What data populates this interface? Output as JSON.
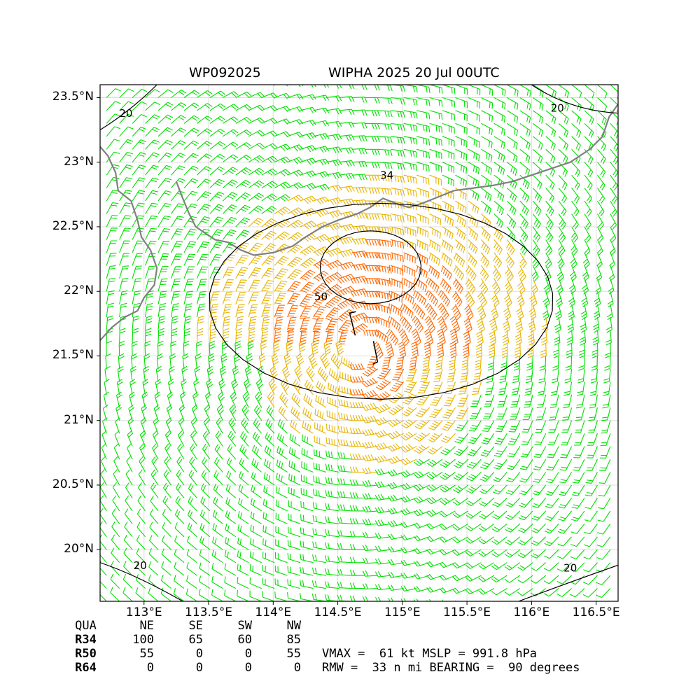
{
  "header": {
    "storm_id": "WP092025",
    "storm_title": "WIPHA 2025 20 Jul 00UTC"
  },
  "map": {
    "extent": {
      "lon": [
        112.66,
        116.67
      ],
      "lat": [
        19.6,
        23.6
      ]
    },
    "center": {
      "lon": 114.7,
      "lat": 21.55
    },
    "x_ticks": [
      {
        "lon": 113.0,
        "label": "113°E"
      },
      {
        "lon": 113.5,
        "label": "113.5°E"
      },
      {
        "lon": 114.0,
        "label": "114°E"
      },
      {
        "lon": 114.5,
        "label": "114.5°E"
      },
      {
        "lon": 115.0,
        "label": "115°E"
      },
      {
        "lon": 115.5,
        "label": "115.5°E"
      },
      {
        "lon": 116.0,
        "label": "116°E"
      },
      {
        "lon": 116.5,
        "label": "116.5°E"
      }
    ],
    "y_ticks": [
      {
        "lat": 23.5,
        "label": "23.5°N"
      },
      {
        "lat": 23.0,
        "label": "23°N"
      },
      {
        "lat": 22.5,
        "label": "22.5°N"
      },
      {
        "lat": 22.0,
        "label": "22°N"
      },
      {
        "lat": 21.5,
        "label": "21.5°N"
      },
      {
        "lat": 21.0,
        "label": "21°N"
      },
      {
        "lat": 20.5,
        "label": "20.5°N"
      },
      {
        "lat": 20.0,
        "label": "20°N"
      }
    ],
    "grid": true,
    "colors": {
      "barb_below_34": "#00e000",
      "barb_34_50": "#e8b400",
      "barb_50_64": "#ff6600",
      "coastline": "#808080",
      "contour": "#000000",
      "grid": "#dddddd"
    },
    "contour_labels": [
      {
        "value": "34",
        "lon": 114.88,
        "lat": 22.87
      },
      {
        "value": "50",
        "lon": 114.37,
        "lat": 21.93
      },
      {
        "value": "20",
        "lon": 112.86,
        "lat": 23.35
      },
      {
        "value": "20",
        "lon": 116.2,
        "lat": 23.39
      },
      {
        "value": "20",
        "lon": 112.97,
        "lat": 19.85
      },
      {
        "value": "20",
        "lon": 116.3,
        "lat": 19.83
      }
    ]
  },
  "wind_radii": {
    "header": [
      "QUA",
      "NE",
      "SE",
      "SW",
      "NW"
    ],
    "rows": [
      {
        "label": "R34",
        "values": [
          "100",
          "65",
          "60",
          "85"
        ]
      },
      {
        "label": "R50",
        "values": [
          "55",
          "0",
          "0",
          "55"
        ]
      },
      {
        "label": "R64",
        "values": [
          "0",
          "0",
          "0",
          "0"
        ]
      }
    ]
  },
  "stats": {
    "line1": "VMAX =  61 kt MSLP = 991.8 hPa",
    "line2": "RMW =  33 n mi BEARING =  90 degrees"
  }
}
